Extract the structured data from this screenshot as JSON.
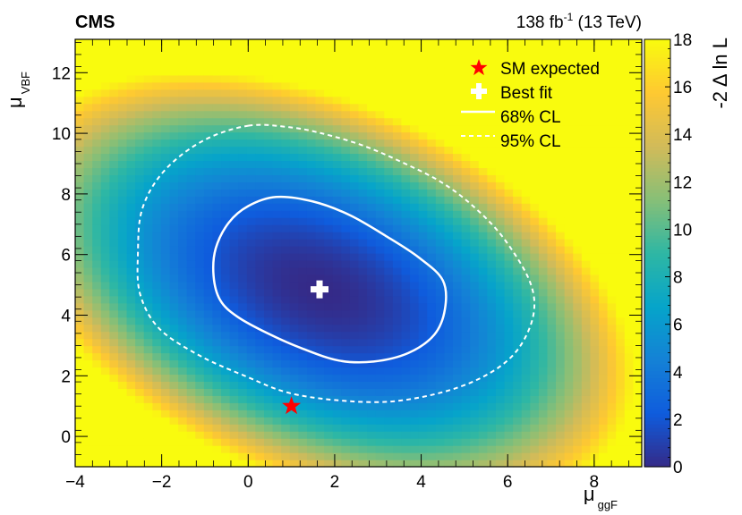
{
  "chart_data": {
    "type": "heatmap",
    "experiment": "CMS",
    "lumi": {
      "value": "138 fb",
      "superscript": "-1",
      "energy": " (13 TeV)"
    },
    "xlabel": {
      "main": "μ",
      "sub": "ggF"
    },
    "ylabel": {
      "main": "μ",
      "sub": "VBF"
    },
    "zlabel": "-2 Δ ln L",
    "xlim": [
      -4,
      9.1
    ],
    "ylim": [
      -1,
      13.1
    ],
    "zlim": [
      0,
      18
    ],
    "xticks": [
      -4,
      -2,
      0,
      2,
      4,
      6,
      8
    ],
    "yticks": [
      0,
      2,
      4,
      6,
      8,
      10,
      12
    ],
    "zticks": [
      0,
      2,
      4,
      6,
      8,
      10,
      12,
      14,
      16,
      18
    ],
    "best_fit": {
      "x": 1.65,
      "y": 4.85
    },
    "sm_expected": {
      "x": 1.0,
      "y": 1.0
    },
    "contour_68": [
      [
        0.65,
        7.9
      ],
      [
        1.5,
        7.75
      ],
      [
        2.35,
        7.3
      ],
      [
        3.2,
        6.6
      ],
      [
        3.95,
        5.9
      ],
      [
        4.5,
        5.15
      ],
      [
        4.55,
        4.2
      ],
      [
        4.3,
        3.35
      ],
      [
        3.7,
        2.75
      ],
      [
        2.9,
        2.47
      ],
      [
        2.1,
        2.5
      ],
      [
        1.25,
        2.9
      ],
      [
        0.45,
        3.4
      ],
      [
        -0.25,
        3.95
      ],
      [
        -0.65,
        4.5
      ],
      [
        -0.8,
        5.3
      ],
      [
        -0.75,
        6.2
      ],
      [
        -0.45,
        7.05
      ],
      [
        0.0,
        7.6
      ]
    ],
    "contour_95": [
      [
        0.0,
        10.25
      ],
      [
        0.95,
        10.2
      ],
      [
        1.7,
        10.0
      ],
      [
        2.65,
        9.6
      ],
      [
        3.55,
        9.05
      ],
      [
        4.45,
        8.4
      ],
      [
        5.2,
        7.6
      ],
      [
        5.9,
        6.55
      ],
      [
        6.5,
        5.15
      ],
      [
        6.6,
        4.05
      ],
      [
        6.25,
        2.9
      ],
      [
        5.6,
        2.1
      ],
      [
        4.6,
        1.5
      ],
      [
        3.3,
        1.15
      ],
      [
        2.0,
        1.2
      ],
      [
        0.9,
        1.45
      ],
      [
        0.0,
        1.95
      ],
      [
        -1.1,
        2.65
      ],
      [
        -2.05,
        3.55
      ],
      [
        -2.5,
        4.7
      ],
      [
        -2.55,
        6.05
      ],
      [
        -2.45,
        7.5
      ],
      [
        -1.95,
        8.75
      ],
      [
        -1.05,
        9.75
      ]
    ],
    "legend": {
      "placement": "top-right",
      "entries": [
        {
          "label": "SM expected",
          "marker": "star",
          "color": "#ff0000"
        },
        {
          "label": "Best fit",
          "marker": "cross",
          "color": "#ffffff"
        },
        {
          "label": "68% CL",
          "marker": "solid-line",
          "color": "#ffffff"
        },
        {
          "label": "95% CL",
          "marker": "dashed-line",
          "color": "#ffffff"
        }
      ]
    },
    "colormap": [
      "#352a87",
      "#0f5cdd",
      "#1481d6",
      "#06a4ca",
      "#2eb7a4",
      "#87bf77",
      "#d1bb59",
      "#fec832",
      "#f9fb0e"
    ]
  }
}
